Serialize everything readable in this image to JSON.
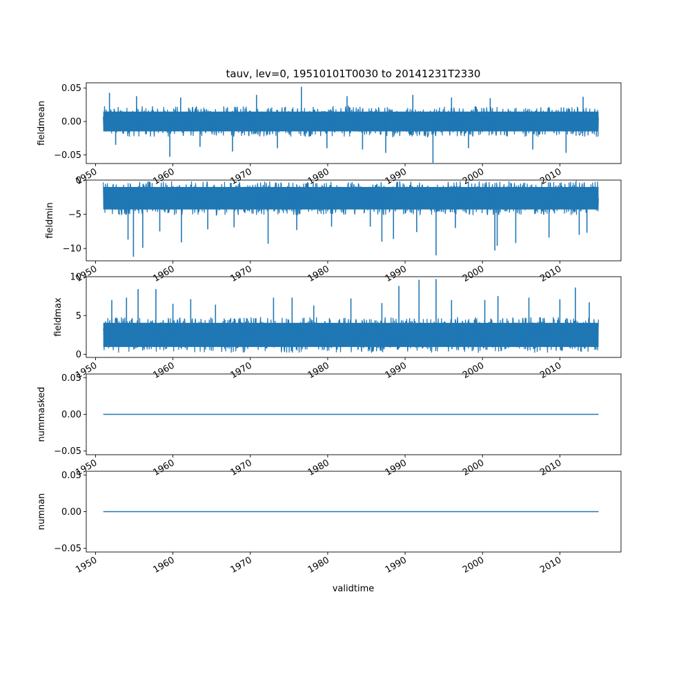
{
  "figure": {
    "title": "tauv, lev=0, 19510101T0030 to 20141231T2330",
    "xlabel": "validtime",
    "line_color": "#1f77b4"
  },
  "chart_data": [
    {
      "type": "line",
      "ylabel": "fieldmean",
      "xlim": [
        1948.8,
        2017.9
      ],
      "ylim": [
        -0.063,
        0.058
      ],
      "x_range": [
        1951.0,
        2015.0
      ],
      "yticks": [
        {
          "value": 0.05,
          "label": "0.05"
        },
        {
          "value": 0.0,
          "label": "0.00"
        },
        {
          "value": -0.05,
          "label": "−0.05"
        }
      ],
      "xticks": [
        {
          "value": 1950,
          "label": "1950"
        },
        {
          "value": 1960,
          "label": "1960"
        },
        {
          "value": 1970,
          "label": "1970"
        },
        {
          "value": 1980,
          "label": "1980"
        },
        {
          "value": 1990,
          "label": "1990"
        },
        {
          "value": 2000,
          "label": "2000"
        },
        {
          "value": 2010,
          "label": "2010"
        }
      ],
      "band": {
        "low": -0.02,
        "high": 0.02
      },
      "spikes": [
        {
          "x": 1951.8,
          "y": 0.043
        },
        {
          "x": 1952.6,
          "y": -0.035
        },
        {
          "x": 1955.3,
          "y": 0.038
        },
        {
          "x": 1959.6,
          "y": -0.053
        },
        {
          "x": 1961.0,
          "y": 0.036
        },
        {
          "x": 1963.5,
          "y": -0.038
        },
        {
          "x": 1967.7,
          "y": -0.045
        },
        {
          "x": 1970.8,
          "y": 0.04
        },
        {
          "x": 1973.5,
          "y": -0.04
        },
        {
          "x": 1976.6,
          "y": 0.052
        },
        {
          "x": 1979.9,
          "y": -0.04
        },
        {
          "x": 1982.5,
          "y": 0.038
        },
        {
          "x": 1984.5,
          "y": -0.042
        },
        {
          "x": 1987.5,
          "y": -0.047
        },
        {
          "x": 1991.0,
          "y": 0.04
        },
        {
          "x": 1993.6,
          "y": -0.062
        },
        {
          "x": 1996.0,
          "y": 0.036
        },
        {
          "x": 1998.2,
          "y": -0.04
        },
        {
          "x": 2001.0,
          "y": 0.035
        },
        {
          "x": 2006.5,
          "y": -0.042
        },
        {
          "x": 2010.8,
          "y": -0.047
        },
        {
          "x": 2013.0,
          "y": 0.037
        }
      ]
    },
    {
      "type": "line",
      "ylabel": "fieldmin",
      "xlim": [
        1948.8,
        2017.9
      ],
      "ylim": [
        -11.8,
        0.0
      ],
      "x_range": [
        1951.0,
        2015.0
      ],
      "yticks": [
        {
          "value": 0,
          "label": "0"
        },
        {
          "value": -5,
          "label": "−5"
        },
        {
          "value": -10,
          "label": "−10"
        }
      ],
      "xticks": [
        {
          "value": 1950,
          "label": "1950"
        },
        {
          "value": 1960,
          "label": "1960"
        },
        {
          "value": 1970,
          "label": "1970"
        },
        {
          "value": 1980,
          "label": "1980"
        },
        {
          "value": 1990,
          "label": "1990"
        },
        {
          "value": 2000,
          "label": "2000"
        },
        {
          "value": 2010,
          "label": "2010"
        }
      ],
      "band": {
        "low": -4.8,
        "high": -0.5
      },
      "spikes": [
        {
          "x": 1954.2,
          "y": -8.7
        },
        {
          "x": 1954.9,
          "y": -11.2
        },
        {
          "x": 1956.1,
          "y": -9.9
        },
        {
          "x": 1958.3,
          "y": -7.5
        },
        {
          "x": 1961.1,
          "y": -9.1
        },
        {
          "x": 1964.5,
          "y": -7.2
        },
        {
          "x": 1967.9,
          "y": -6.9
        },
        {
          "x": 1972.3,
          "y": -9.3
        },
        {
          "x": 1976.0,
          "y": -7.3
        },
        {
          "x": 1980.5,
          "y": -6.8
        },
        {
          "x": 1985.5,
          "y": -6.8
        },
        {
          "x": 1987.0,
          "y": -9.0
        },
        {
          "x": 1988.5,
          "y": -8.6
        },
        {
          "x": 1991.5,
          "y": -7.6
        },
        {
          "x": 1994.0,
          "y": -11.0
        },
        {
          "x": 1996.5,
          "y": -7.0
        },
        {
          "x": 2001.9,
          "y": -9.6
        },
        {
          "x": 2001.6,
          "y": -10.3
        },
        {
          "x": 2004.3,
          "y": -9.2
        },
        {
          "x": 2008.6,
          "y": -8.4
        },
        {
          "x": 2012.5,
          "y": -8.0
        },
        {
          "x": 2013.5,
          "y": -7.7
        }
      ]
    },
    {
      "type": "line",
      "ylabel": "fieldmax",
      "xlim": [
        1948.8,
        2017.9
      ],
      "ylim": [
        -0.4,
        10.0
      ],
      "x_range": [
        1951.0,
        2015.0
      ],
      "yticks": [
        {
          "value": 10,
          "label": "10"
        },
        {
          "value": 5,
          "label": "5"
        },
        {
          "value": 0,
          "label": "0"
        }
      ],
      "xticks": [
        {
          "value": 1950,
          "label": "1950"
        },
        {
          "value": 1960,
          "label": "1960"
        },
        {
          "value": 1970,
          "label": "1970"
        },
        {
          "value": 1980,
          "label": "1980"
        },
        {
          "value": 1990,
          "label": "1990"
        },
        {
          "value": 2000,
          "label": "2000"
        },
        {
          "value": 2010,
          "label": "2010"
        }
      ],
      "band": {
        "low": 0.5,
        "high": 4.5
      },
      "spikes": [
        {
          "x": 1952.1,
          "y": 7.0
        },
        {
          "x": 1954.0,
          "y": 7.3
        },
        {
          "x": 1955.5,
          "y": 8.4
        },
        {
          "x": 1957.8,
          "y": 8.4
        },
        {
          "x": 1960.0,
          "y": 6.5
        },
        {
          "x": 1962.3,
          "y": 7.1
        },
        {
          "x": 1965.5,
          "y": 6.4
        },
        {
          "x": 1973.0,
          "y": 7.3
        },
        {
          "x": 1975.4,
          "y": 7.3
        },
        {
          "x": 1978.2,
          "y": 6.3
        },
        {
          "x": 1983.0,
          "y": 7.2
        },
        {
          "x": 1987.0,
          "y": 6.6
        },
        {
          "x": 1989.2,
          "y": 8.8
        },
        {
          "x": 1991.8,
          "y": 9.6
        },
        {
          "x": 1994.0,
          "y": 9.7
        },
        {
          "x": 1996.0,
          "y": 7.0
        },
        {
          "x": 2000.3,
          "y": 7.0
        },
        {
          "x": 2002.0,
          "y": 7.5
        },
        {
          "x": 2006.0,
          "y": 7.3
        },
        {
          "x": 2010.0,
          "y": 7.1
        },
        {
          "x": 2012.0,
          "y": 8.6
        },
        {
          "x": 2013.8,
          "y": 6.7
        }
      ]
    },
    {
      "type": "line",
      "ylabel": "nummasked",
      "xlim": [
        1948.8,
        2017.9
      ],
      "ylim": [
        -0.055,
        0.055
      ],
      "x": [
        1951.0,
        2015.0
      ],
      "y": [
        0.0,
        0.0
      ],
      "yticks": [
        {
          "value": 0.05,
          "label": "0.05"
        },
        {
          "value": 0.0,
          "label": "0.00"
        },
        {
          "value": -0.05,
          "label": "−0.05"
        }
      ],
      "xticks": [
        {
          "value": 1950,
          "label": "1950"
        },
        {
          "value": 1960,
          "label": "1960"
        },
        {
          "value": 1970,
          "label": "1970"
        },
        {
          "value": 1980,
          "label": "1980"
        },
        {
          "value": 1990,
          "label": "1990"
        },
        {
          "value": 2000,
          "label": "2000"
        },
        {
          "value": 2010,
          "label": "2010"
        }
      ]
    },
    {
      "type": "line",
      "ylabel": "numnan",
      "xlim": [
        1948.8,
        2017.9
      ],
      "ylim": [
        -0.055,
        0.055
      ],
      "x": [
        1951.0,
        2015.0
      ],
      "y": [
        0.0,
        0.0
      ],
      "yticks": [
        {
          "value": 0.05,
          "label": "0.05"
        },
        {
          "value": 0.0,
          "label": "0.00"
        },
        {
          "value": -0.05,
          "label": "−0.05"
        }
      ],
      "xticks": [
        {
          "value": 1950,
          "label": "1950"
        },
        {
          "value": 1960,
          "label": "1960"
        },
        {
          "value": 1970,
          "label": "1970"
        },
        {
          "value": 1980,
          "label": "1980"
        },
        {
          "value": 1990,
          "label": "1990"
        },
        {
          "value": 2000,
          "label": "2000"
        },
        {
          "value": 2010,
          "label": "2010"
        }
      ]
    }
  ]
}
